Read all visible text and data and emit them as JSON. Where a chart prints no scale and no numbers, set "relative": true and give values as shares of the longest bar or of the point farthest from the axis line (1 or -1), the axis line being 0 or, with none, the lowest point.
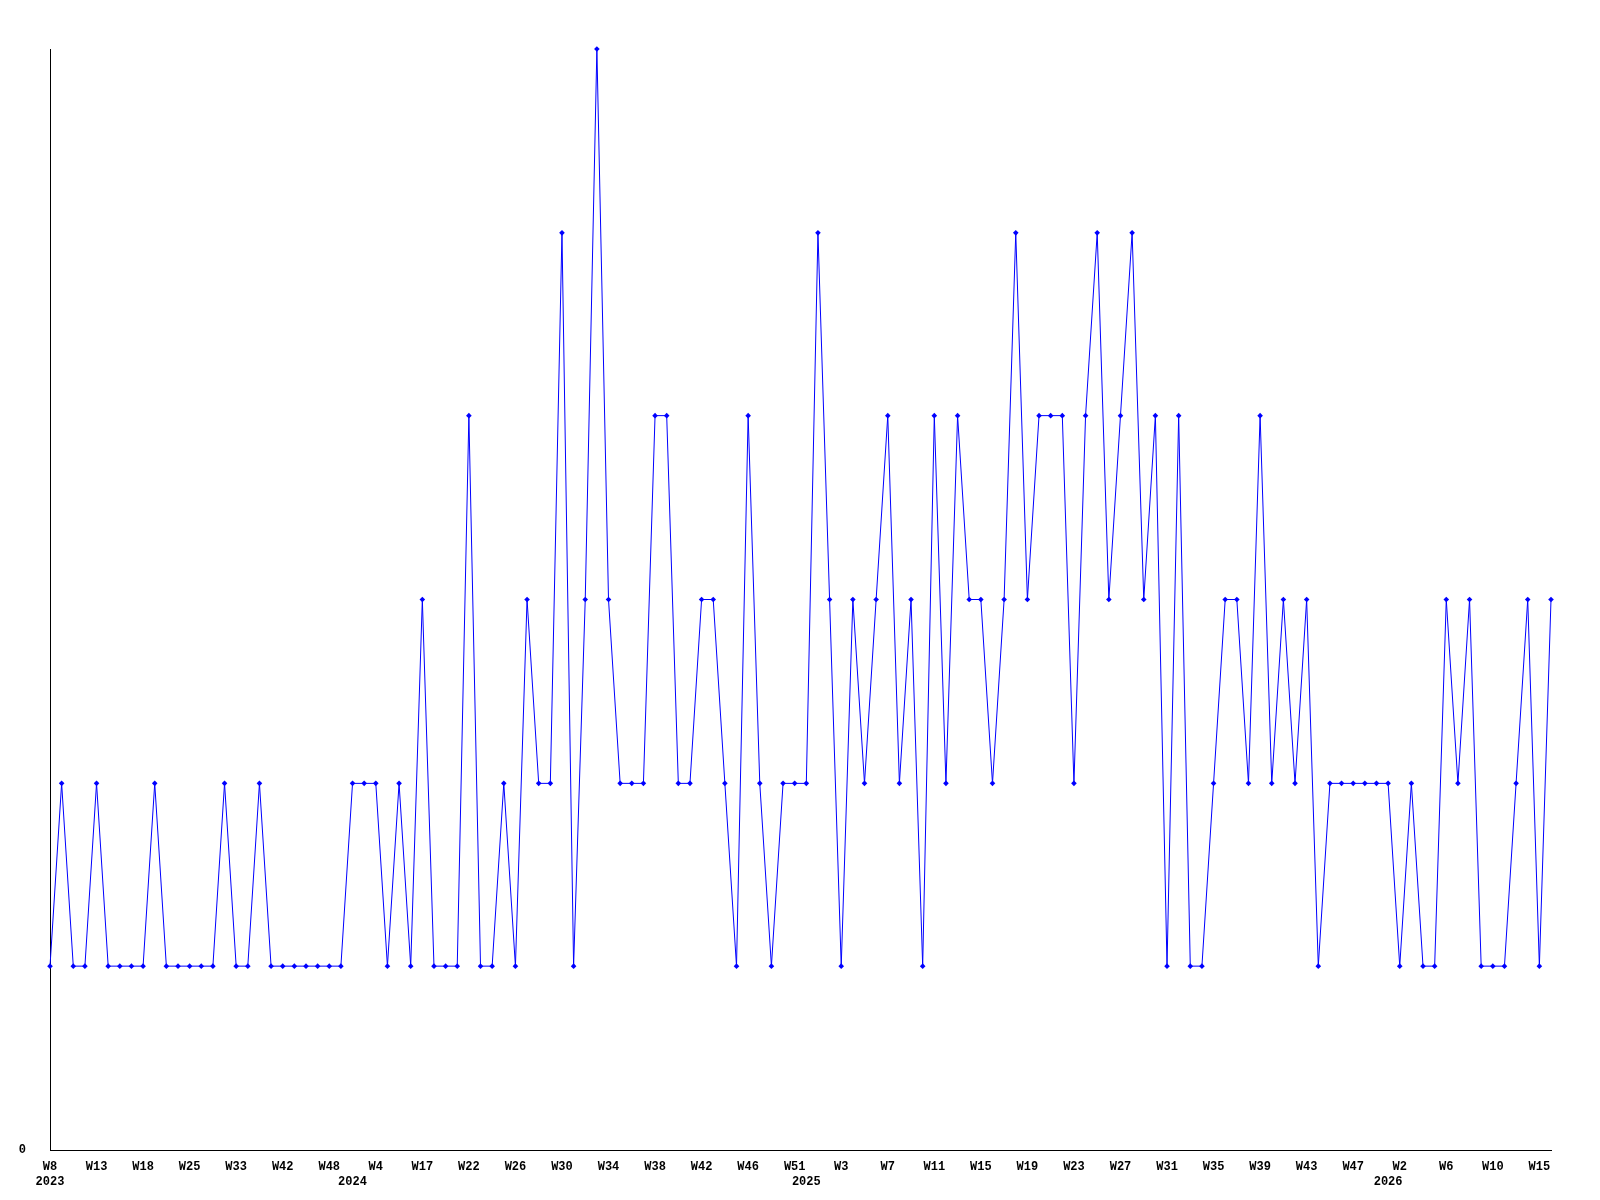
{
  "chart_data": {
    "type": "line",
    "relative": true,
    "marker": "diamond",
    "line_style": "solid",
    "annotations": [
      "0"
    ],
    "categories": [
      "W8\n2023",
      null,
      null,
      null,
      "W13",
      null,
      null,
      null,
      "W18",
      null,
      null,
      null,
      "W25",
      null,
      null,
      null,
      "W33",
      null,
      null,
      null,
      "W42",
      null,
      null,
      null,
      "W48",
      null,
      "\n2024",
      null,
      "W4",
      null,
      null,
      null,
      "W17",
      null,
      null,
      null,
      "W22",
      null,
      null,
      null,
      "W26",
      null,
      null,
      null,
      "W30",
      null,
      null,
      null,
      "W34",
      null,
      null,
      null,
      "W38",
      null,
      null,
      null,
      "W42",
      null,
      null,
      null,
      "W46",
      null,
      null,
      null,
      "W51",
      "\n2025",
      null,
      null,
      "W3",
      null,
      null,
      null,
      "W7",
      null,
      null,
      null,
      "W11",
      null,
      null,
      null,
      "W15",
      null,
      null,
      null,
      "W19",
      null,
      null,
      null,
      "W23",
      null,
      null,
      null,
      "W27",
      null,
      null,
      null,
      "W31",
      null,
      null,
      null,
      "W35",
      null,
      null,
      null,
      "W39",
      null,
      null,
      null,
      "W43",
      null,
      null,
      null,
      "W47",
      null,
      null,
      "\n2026",
      "W2",
      null,
      null,
      null,
      "W6",
      null,
      null,
      null,
      "W10",
      null,
      null,
      null,
      "W15",
      null
    ],
    "series": [
      {
        "color": "#0000ff",
        "values": [
          0.167,
          0.333,
          0.167,
          0.167,
          0.333,
          0.167,
          0.167,
          0.167,
          0.167,
          0.333,
          0.167,
          0.167,
          0.167,
          0.167,
          0.167,
          0.333,
          0.167,
          0.167,
          0.333,
          0.167,
          0.167,
          0.167,
          0.167,
          0.167,
          0.167,
          0.167,
          0.333,
          0.333,
          0.333,
          0.167,
          0.333,
          0.167,
          0.5,
          0.167,
          0.167,
          0.167,
          0.667,
          0.167,
          0.167,
          0.333,
          0.167,
          0.5,
          0.333,
          0.333,
          0.833,
          0.167,
          0.5,
          1,
          0.5,
          0.333,
          0.333,
          0.333,
          0.667,
          0.667,
          0.333,
          0.333,
          0.5,
          0.5,
          0.333,
          0.167,
          0.667,
          0.333,
          0.167,
          0.333,
          0.333,
          0.333,
          0.833,
          0.5,
          0.167,
          0.5,
          0.333,
          0.5,
          0.667,
          0.333,
          0.5,
          0.167,
          0.667,
          0.333,
          0.667,
          0.5,
          0.5,
          0.333,
          0.5,
          0.833,
          0.5,
          0.667,
          0.667,
          0.667,
          0.333,
          0.667,
          0.833,
          0.5,
          0.667,
          0.833,
          0.5,
          0.667,
          0.167,
          0.667,
          0.167,
          0.167,
          0.333,
          0.5,
          0.5,
          0.333,
          0.667,
          0.333,
          0.5,
          0.333,
          0.5,
          0.167,
          0.333,
          0.333,
          0.333,
          0.333,
          0.333,
          0.333,
          0.167,
          0.333,
          0.167,
          0.167,
          0.5,
          0.333,
          0.5,
          0.167,
          0.167,
          0.167,
          0.333,
          0.5,
          0.167,
          0.5
        ]
      }
    ]
  }
}
